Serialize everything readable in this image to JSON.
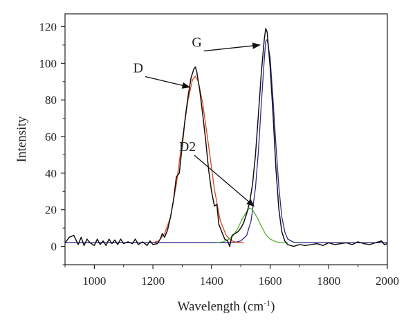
{
  "chart_data": {
    "type": "line",
    "xlabel": "Wavelength (cm",
    "xlabel_sup": "-1",
    "xlabel_close": ")",
    "ylabel": "Intensity",
    "xlim": [
      900,
      2000
    ],
    "ylim": [
      -10,
      127
    ],
    "xticks": [
      1000,
      1200,
      1400,
      1600,
      1800,
      2000
    ],
    "yticks": [
      0,
      20,
      40,
      60,
      80,
      100,
      120
    ],
    "grid": false,
    "legend": "none",
    "series": [
      {
        "color": "#111111",
        "x": [
          900,
          915,
          930,
          945,
          955,
          965,
          975,
          985,
          1000,
          1010,
          1020,
          1030,
          1040,
          1050,
          1060,
          1070,
          1080,
          1090,
          1100,
          1115,
          1130,
          1140,
          1150,
          1165,
          1180,
          1190,
          1200,
          1215,
          1225,
          1232,
          1240,
          1250,
          1260,
          1270,
          1280,
          1290,
          1300,
          1310,
          1320,
          1330,
          1340,
          1345,
          1350,
          1360,
          1370,
          1380,
          1390,
          1400,
          1410,
          1418,
          1425,
          1435,
          1445,
          1455,
          1462,
          1470,
          1480,
          1490,
          1500,
          1510,
          1520,
          1530,
          1540,
          1550,
          1560,
          1570,
          1580,
          1585,
          1590,
          1600,
          1610,
          1620,
          1630,
          1640,
          1650,
          1660,
          1670,
          1680,
          1690,
          1700,
          1720,
          1740,
          1760,
          1780,
          1800,
          1820,
          1840,
          1860,
          1880,
          1900,
          1920,
          1940,
          1960,
          1980,
          1990,
          2000
        ],
        "y": [
          2,
          5,
          6,
          1,
          5,
          0.5,
          4,
          2,
          0.5,
          4,
          1,
          3,
          0.5,
          4,
          1.5,
          3.5,
          1,
          4,
          1.5,
          2.5,
          1.5,
          4,
          1,
          2.5,
          0.5,
          3,
          1,
          1.5,
          4,
          7,
          5,
          9,
          16,
          25,
          38,
          40,
          55,
          70,
          82,
          92,
          97,
          98,
          95,
          85,
          72,
          58,
          42,
          30,
          22,
          23,
          12,
          8,
          4,
          3,
          0,
          6,
          7,
          8,
          10,
          13,
          18,
          24,
          34,
          50,
          72,
          95,
          113,
          119,
          117,
          98,
          72,
          42,
          20,
          8,
          3,
          1,
          0.5,
          0,
          0.5,
          1,
          0.5,
          1,
          1.5,
          0.5,
          2,
          1,
          1.5,
          2,
          1,
          2.5,
          1.5,
          1,
          2,
          3,
          1,
          1.5
        ]
      },
      {
        "color": "#e0401a",
        "peak": "D",
        "x": [
          1200,
          1220,
          1240,
          1260,
          1280,
          1300,
          1320,
          1335,
          1345,
          1355,
          1370,
          1390,
          1410,
          1430,
          1450,
          1470,
          1490,
          1510
        ],
        "y": [
          2,
          3,
          7,
          16,
          34,
          58,
          80,
          91,
          93,
          90,
          78,
          55,
          31,
          14,
          6,
          3,
          2,
          2
        ]
      },
      {
        "color": "#55b030",
        "peak": "D2",
        "x": [
          1420,
          1440,
          1460,
          1475,
          1490,
          1505,
          1520,
          1530,
          1540,
          1555,
          1570,
          1585,
          1600,
          1620,
          1640,
          1660
        ],
        "y": [
          2,
          2.5,
          4,
          6,
          10,
          15,
          19,
          21,
          20,
          16,
          11,
          6.5,
          4,
          2.5,
          2,
          2
        ]
      },
      {
        "color": "#2a2a90",
        "peak": "G",
        "x": [
          900,
          1450,
          1480,
          1500,
          1520,
          1535,
          1550,
          1560,
          1570,
          1580,
          1585,
          1590,
          1600,
          1610,
          1620,
          1630,
          1640,
          1650,
          1660,
          1680,
          1700,
          2000
        ],
        "y": [
          2,
          2,
          2.2,
          3,
          6,
          14,
          32,
          52,
          78,
          102,
          112,
          113,
          103,
          80,
          55,
          32,
          16,
          8,
          4,
          2.3,
          2,
          2
        ]
      }
    ],
    "annotations": [
      {
        "text": "D",
        "x": 1325,
        "y": 87
      },
      {
        "text": "G",
        "x": 1565,
        "y": 110
      },
      {
        "text": "D2",
        "x": 1545,
        "y": 22
      }
    ]
  }
}
